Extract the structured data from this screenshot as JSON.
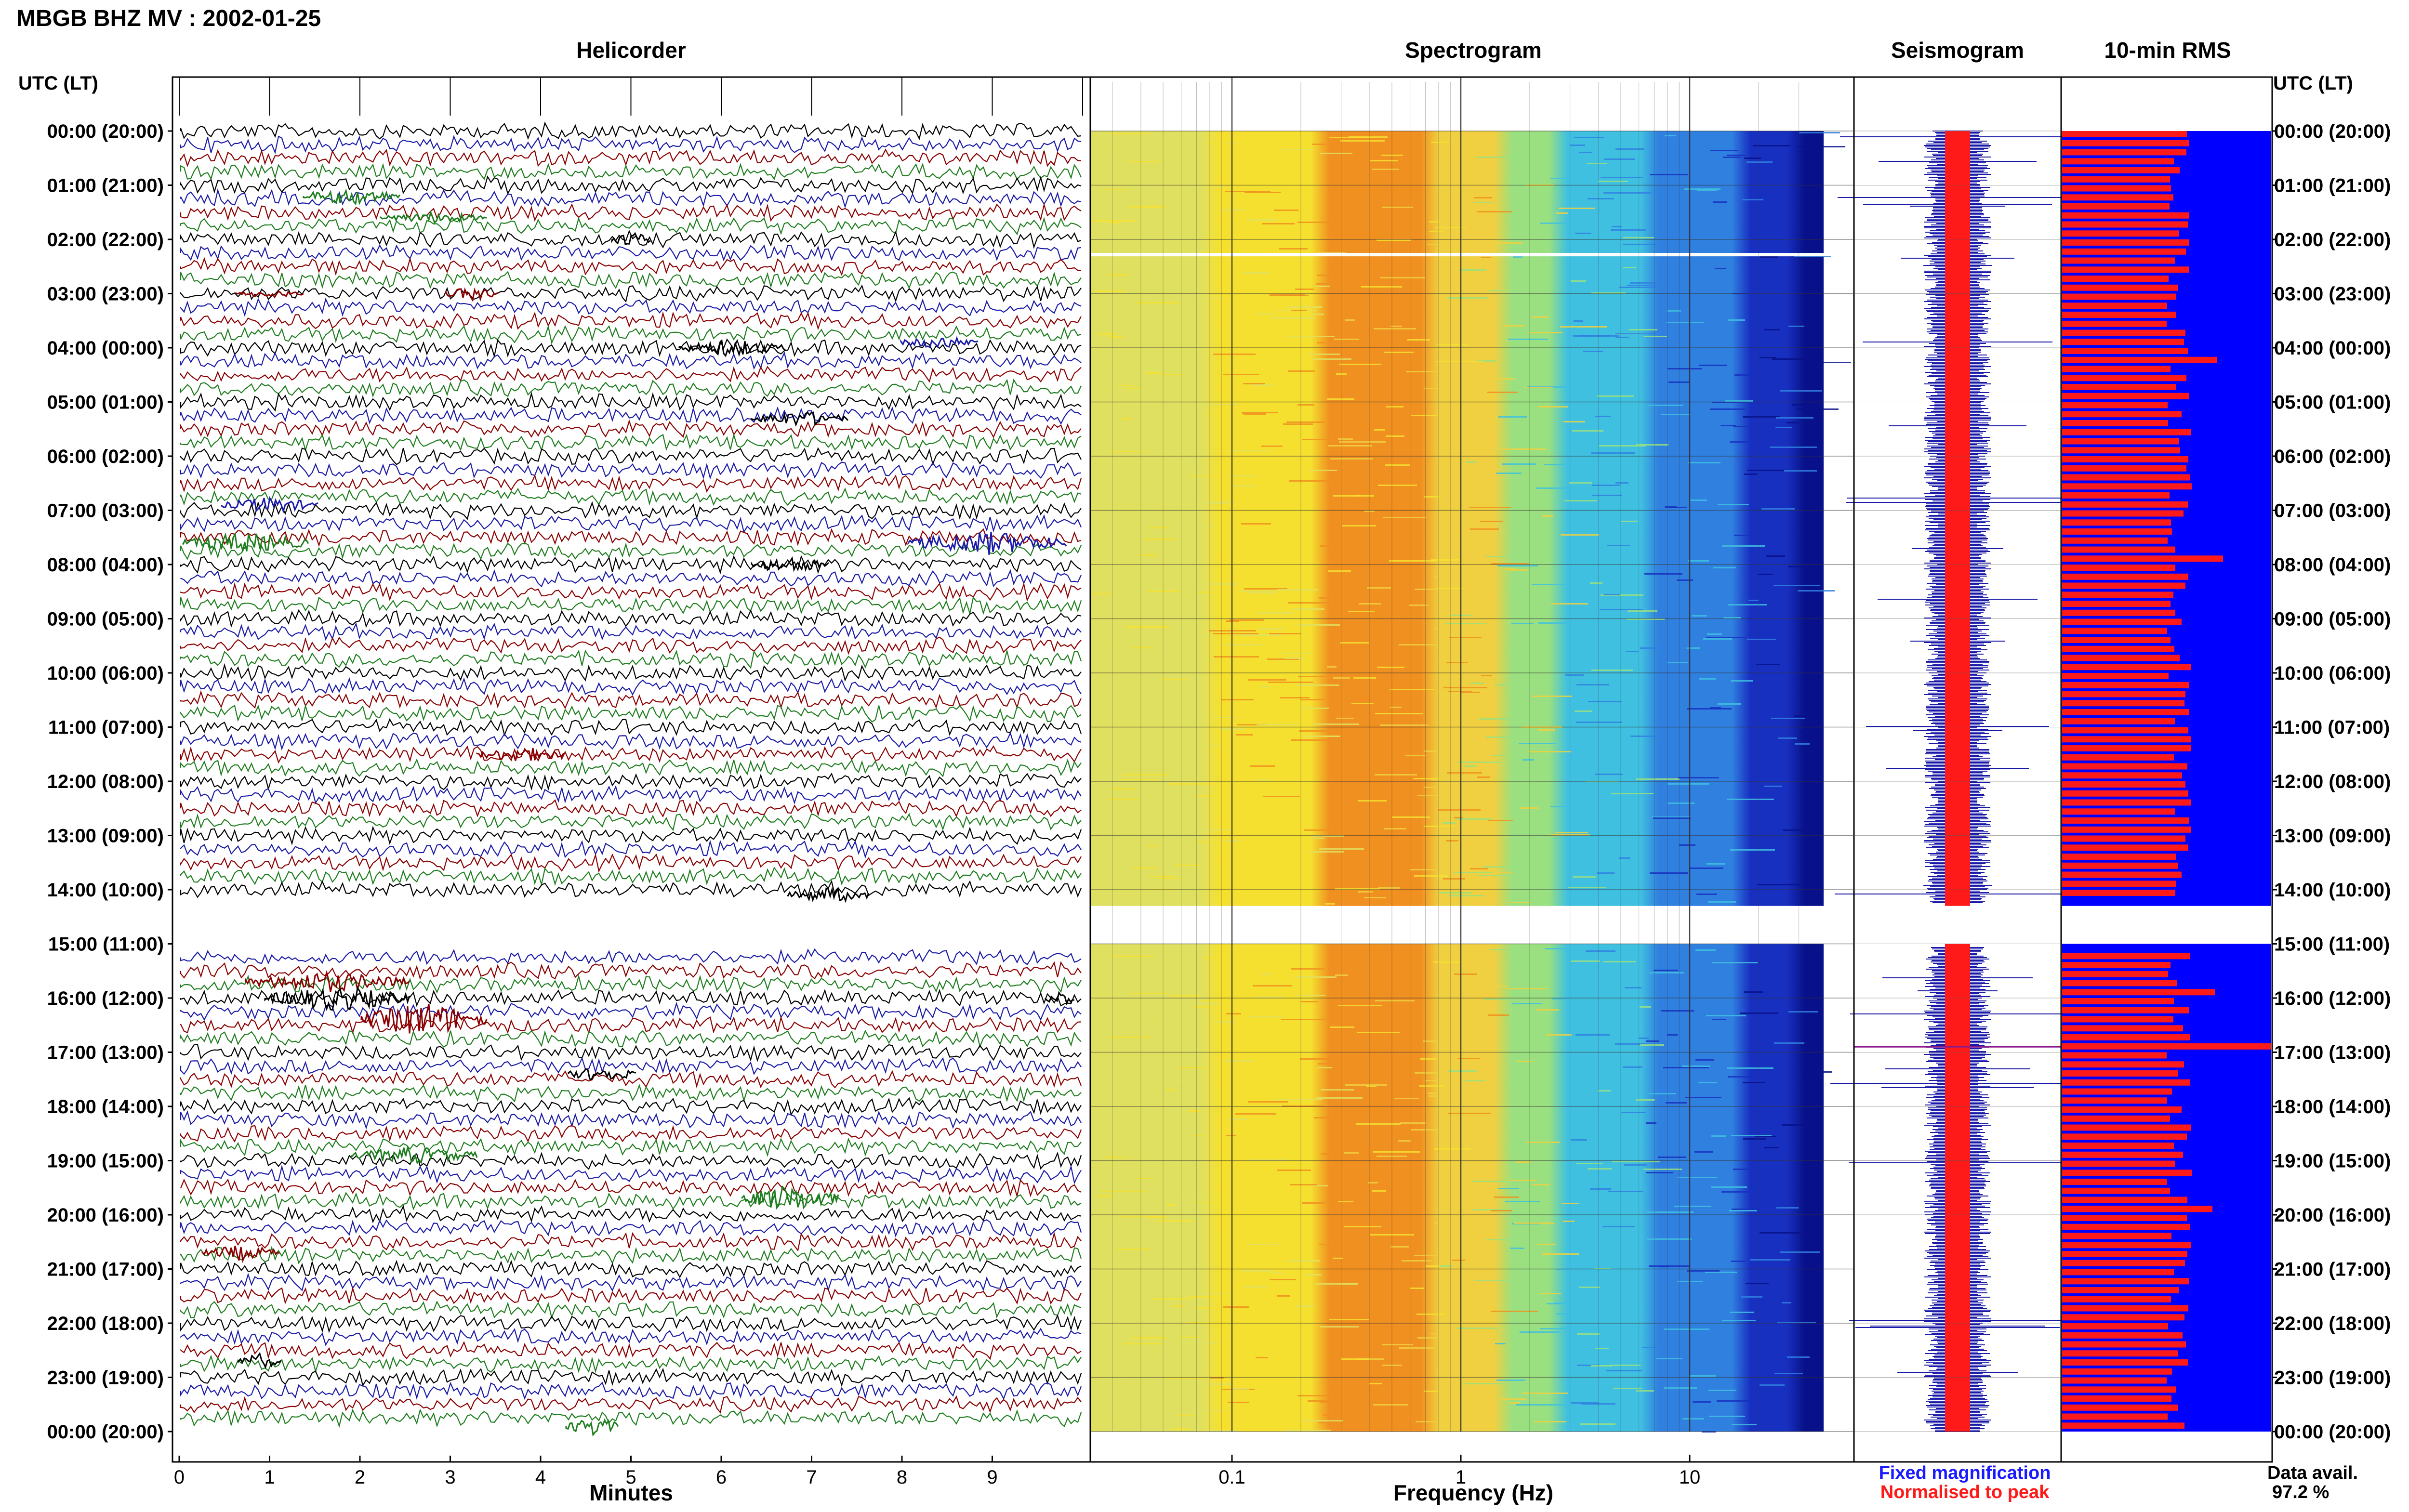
{
  "header": {
    "title": "MBGB BHZ MV : 2002-01-25",
    "utc_lt_label": "UTC (LT)",
    "utc_lt_label_right": "UTC (LT)"
  },
  "panels": {
    "helicorder": "Helicorder",
    "spectrogram": "Spectrogram",
    "seismogram": "Seismogram",
    "rms": "10-min RMS"
  },
  "time_labels": [
    "00:00 (20:00)",
    "01:00 (21:00)",
    "02:00 (22:00)",
    "03:00 (23:00)",
    "04:00 (00:00)",
    "05:00 (01:00)",
    "06:00 (02:00)",
    "07:00 (03:00)",
    "08:00 (04:00)",
    "09:00 (05:00)",
    "10:00 (06:00)",
    "11:00 (07:00)",
    "12:00 (08:00)",
    "13:00 (09:00)",
    "14:00 (10:00)",
    "15:00 (11:00)",
    "16:00 (12:00)",
    "17:00 (13:00)",
    "18:00 (14:00)",
    "19:00 (15:00)",
    "20:00 (16:00)",
    "21:00 (17:00)",
    "22:00 (18:00)",
    "23:00 (19:00)",
    "00:00 (20:00)"
  ],
  "axes": {
    "minutes_label": "Minutes",
    "minutes_ticks": [
      "0",
      "1",
      "2",
      "3",
      "4",
      "5",
      "6",
      "7",
      "8",
      "9"
    ],
    "frequency_label": "Frequency (Hz)",
    "frequency_ticks": [
      "0.1",
      "1",
      "10"
    ]
  },
  "legend": {
    "fixed": "Fixed magnification",
    "normalised": "Normalised to peak",
    "fixed_color": "#1a1aff",
    "normalised_color": "#ff1a1a"
  },
  "availability": {
    "label": "Data avail.",
    "value": "97.2 %"
  },
  "colors": {
    "trace_cycle": [
      "#000000",
      "#1a1aa8",
      "#8b0000",
      "#1e7d1e"
    ],
    "rms_background": "#0000ff",
    "rms_bar": "#ff1a1a",
    "spectrogram_ramp": [
      "#e0e060",
      "#f5e030",
      "#f09020",
      "#f0d040",
      "#9ae080",
      "#40c0e0",
      "#3080e0",
      "#1830c0",
      "#08108a"
    ]
  },
  "chart_data": {
    "type": "heatmap",
    "title": "MBGB BHZ MV : 2002-01-25",
    "xlabel": "Frequency (Hz)",
    "x_scale": "log",
    "xlim": [
      0.02,
      35
    ],
    "gap_hours": [
      14.3,
      15.0
    ],
    "rms_peaks": {
      "hour": [
        4.1,
        7.8,
        15.9,
        16.9,
        19.8
      ],
      "relative": [
        0.74,
        0.77,
        0.73,
        1.0,
        0.72
      ]
    },
    "grid": true
  }
}
